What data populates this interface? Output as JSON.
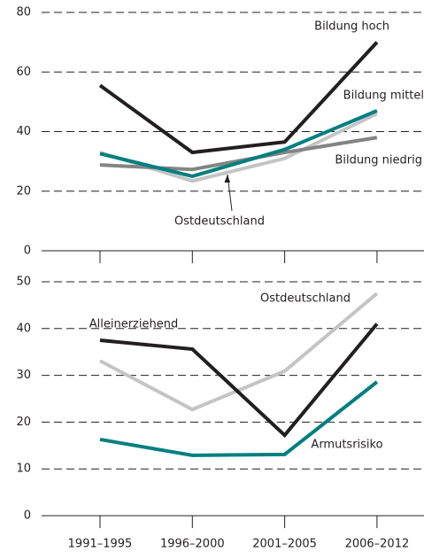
{
  "chart_data": [
    {
      "type": "line",
      "ylim": [
        0,
        80
      ],
      "yticks": [
        0,
        20,
        40,
        60,
        80
      ],
      "grid": true,
      "series": [
        {
          "name": "Ostdeutschland",
          "color": "#c4c4c4",
          "values": [
            33,
            23.4,
            31,
            46
          ]
        },
        {
          "name": "Bildung niedrig",
          "color": "#848484",
          "values": [
            28.8,
            27.3,
            33,
            38
          ]
        },
        {
          "name": "Bildung mittel",
          "color": "#007f80",
          "values": [
            32.6,
            25,
            34,
            47
          ]
        },
        {
          "name": "Bildung hoch",
          "color": "#231f20",
          "values": [
            55.5,
            33,
            36.5,
            70
          ]
        }
      ]
    },
    {
      "type": "line",
      "ylim": [
        0,
        50
      ],
      "yticks": [
        0,
        10,
        20,
        30,
        40,
        50
      ],
      "grid": true,
      "categories": [
        "1991–1995",
        "1996–2000",
        "2001–2005",
        "2006–2012"
      ],
      "series": [
        {
          "name": "Ostdeutschland",
          "color": "#c4c4c4",
          "values": [
            33.1,
            22.7,
            30.9,
            47.5
          ]
        },
        {
          "name": "Armutsrisiko",
          "color": "#007f80",
          "values": [
            16.3,
            12.9,
            13.1,
            28.6
          ]
        },
        {
          "name": "Alleinerziehend",
          "color": "#231f20",
          "values": [
            37.5,
            35.6,
            17.2,
            41
          ]
        }
      ]
    }
  ]
}
